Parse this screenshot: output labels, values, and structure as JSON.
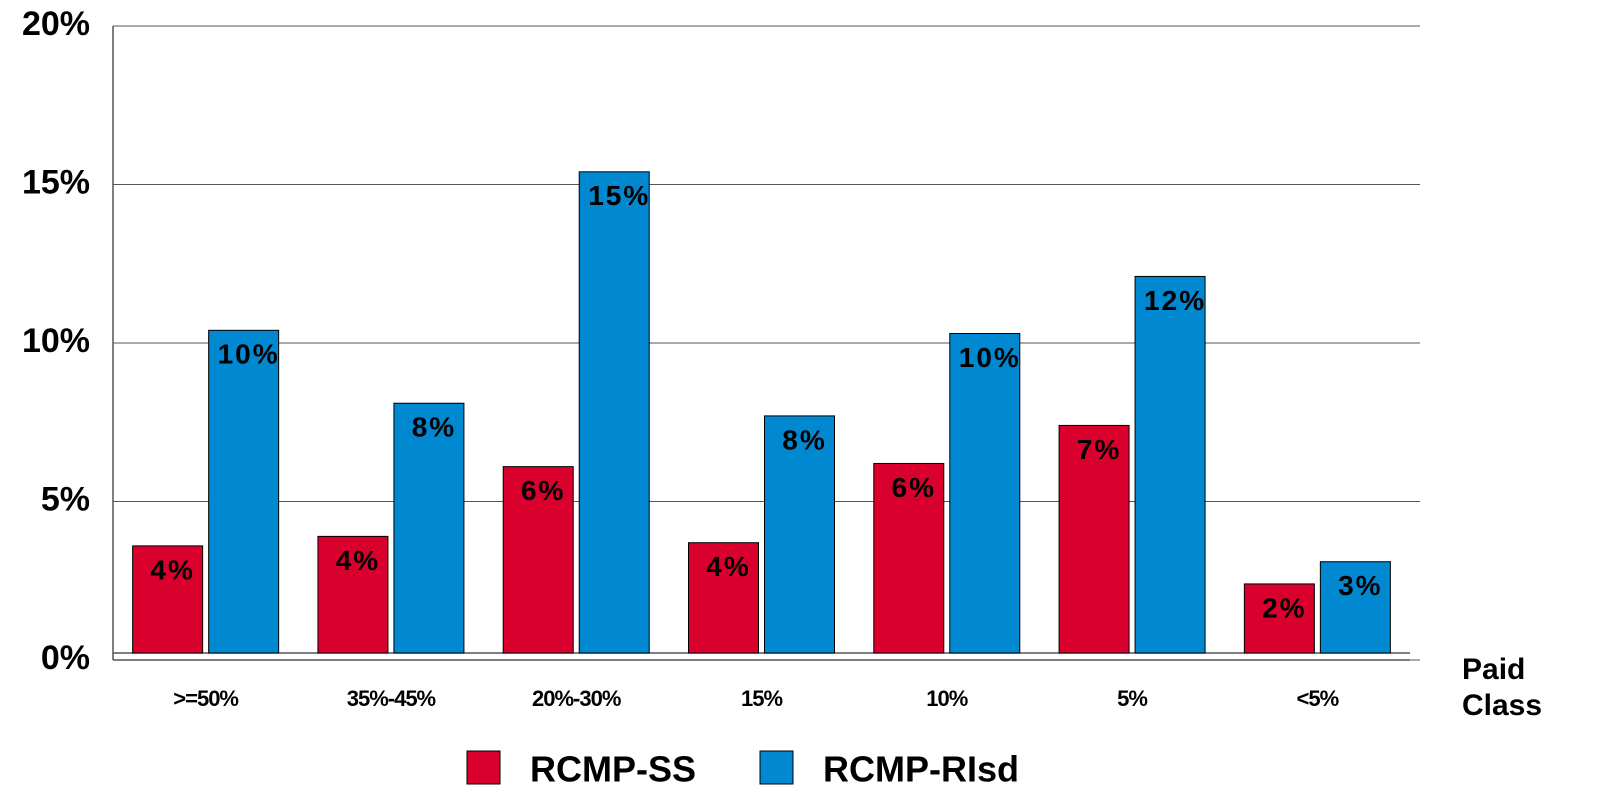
{
  "chart_data": {
    "type": "bar",
    "x_label": "Paid Class",
    "categories": [
      ">=50%",
      "35%-45%",
      "20%-30%",
      "15%",
      "10%",
      "5%",
      "<5%"
    ],
    "series": [
      {
        "name": "RCMP-SS",
        "color": "#d9002e",
        "values": [
          3.6,
          3.9,
          6.1,
          3.7,
          6.2,
          7.4,
          2.4
        ],
        "value_labels": [
          "4%",
          "4%",
          "6%",
          "4%",
          "6%",
          "7%",
          "2%"
        ]
      },
      {
        "name": "RCMP-RIsd",
        "color": "#0088d1",
        "values": [
          10.4,
          8.1,
          15.4,
          7.7,
          10.3,
          12.1,
          3.1
        ],
        "value_labels": [
          "10%",
          "8%",
          "15%",
          "8%",
          "10%",
          "12%",
          "3%"
        ]
      }
    ],
    "ylim": [
      0,
      20
    ],
    "yticks": [
      {
        "value": 0,
        "label": "0%"
      },
      {
        "value": 5,
        "label": "5%"
      },
      {
        "value": 10,
        "label": "10%"
      },
      {
        "value": 15,
        "label": "15%"
      },
      {
        "value": 20,
        "label": "20%"
      }
    ],
    "grid": true
  }
}
